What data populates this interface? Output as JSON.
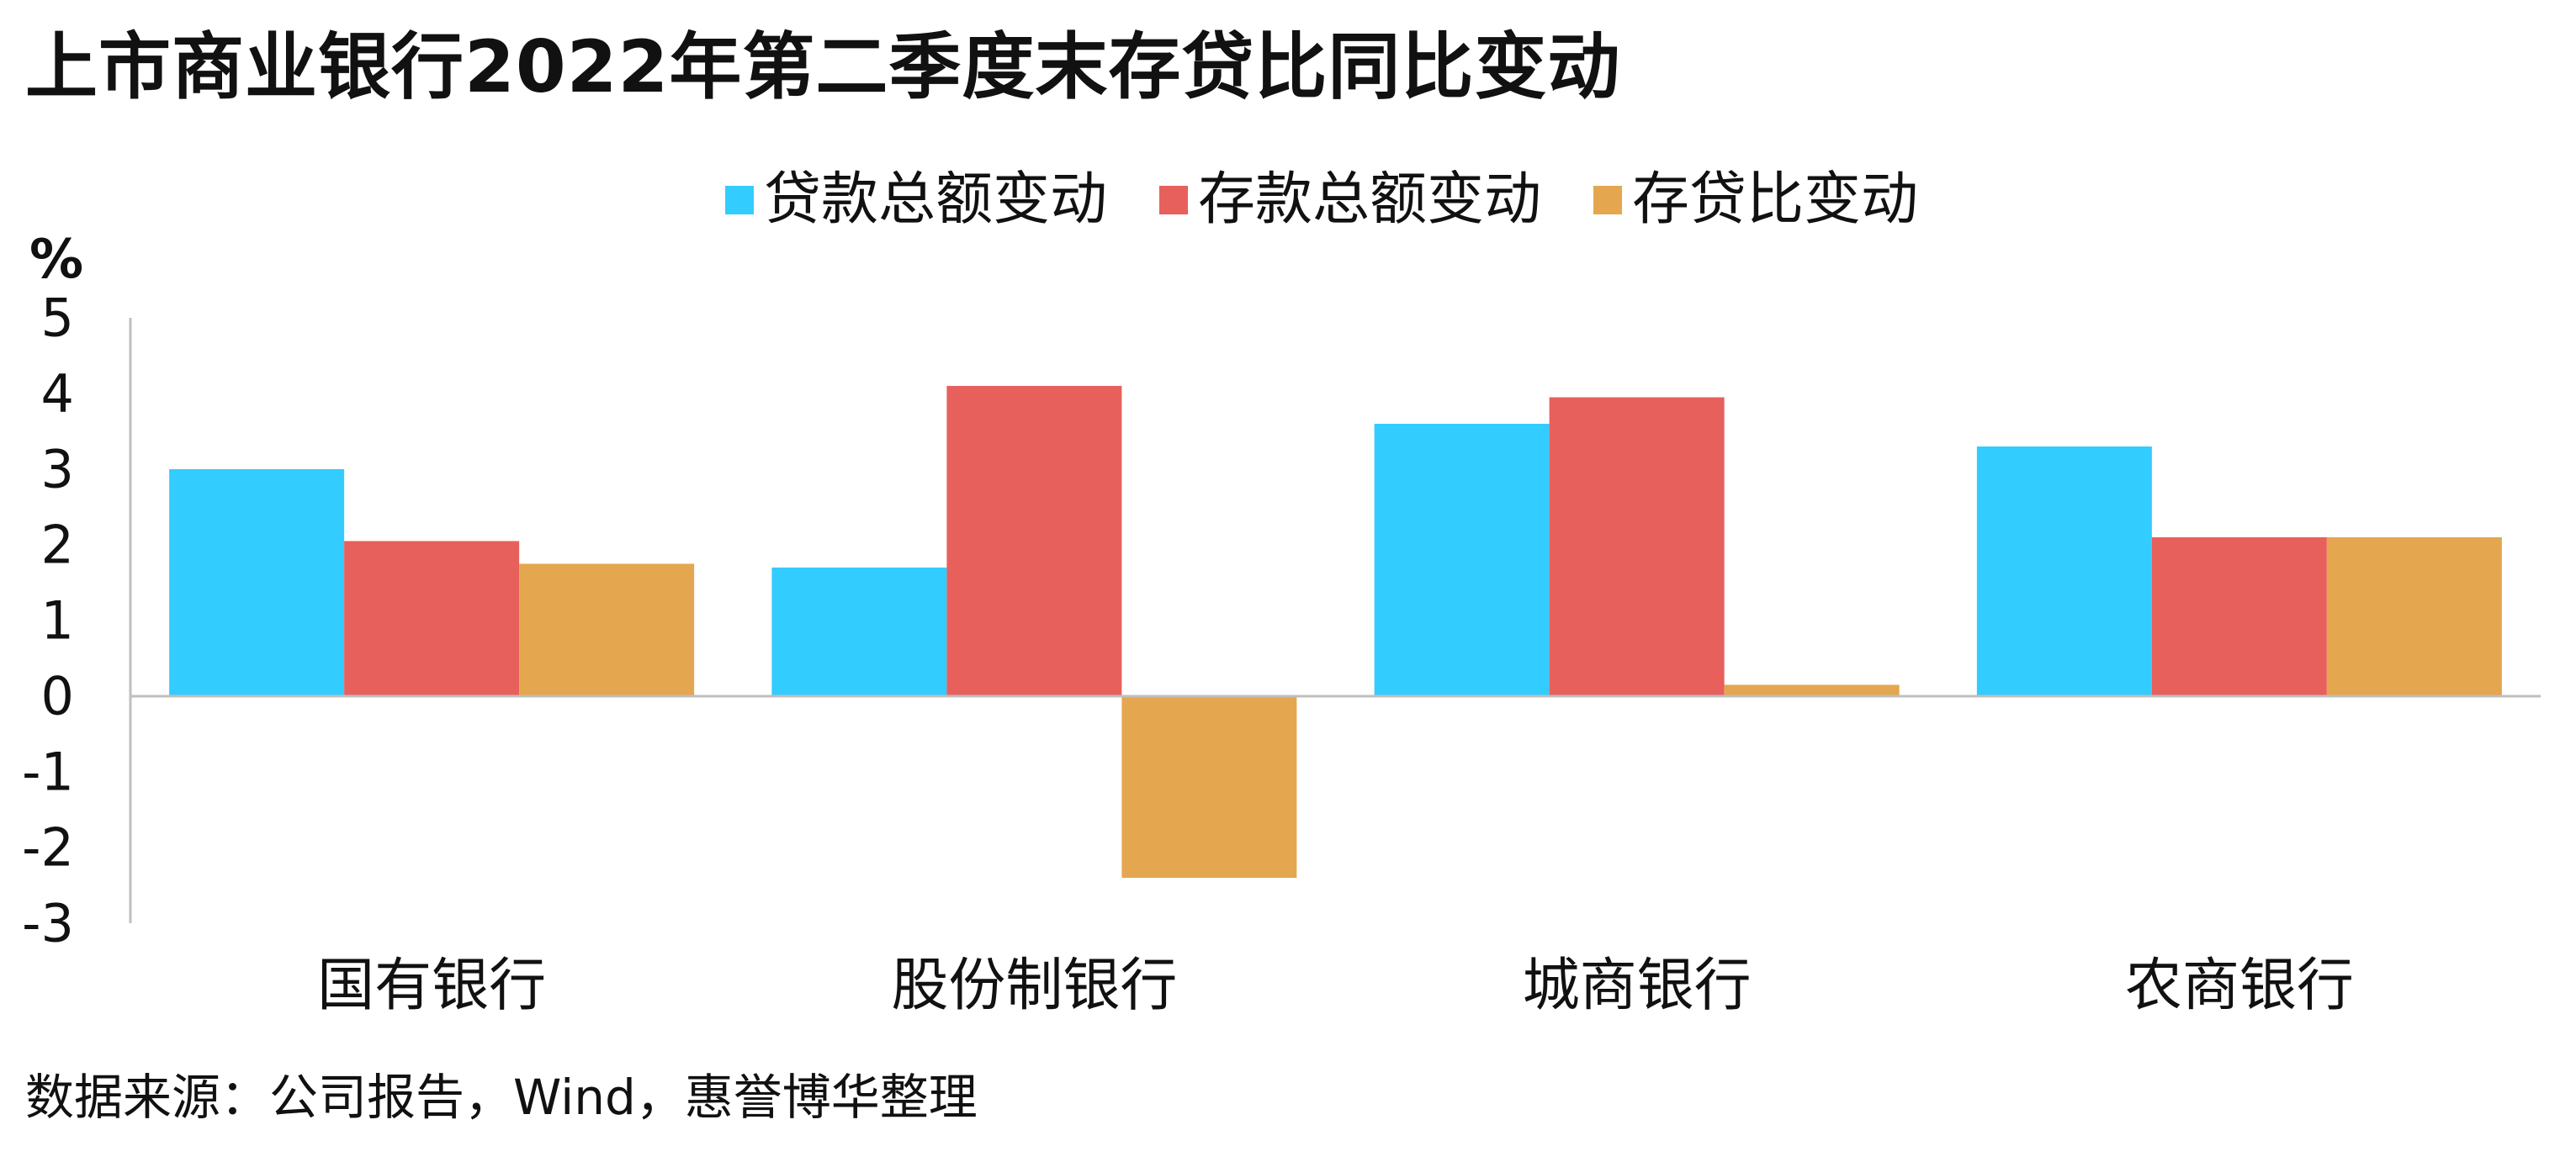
{
  "title": "上市商业银行2022年第二季度末存贷比同比变动",
  "source": "数据来源：公司报告，Wind，惠誉博华整理",
  "chart_data": {
    "type": "bar",
    "title": "上市商业银行2022年第二季度末存贷比同比变动",
    "ylabel": "%",
    "xlabel": "",
    "ylim": [
      -3,
      5
    ],
    "yticks": [
      "5",
      "4",
      "3",
      "2",
      "1",
      "0",
      "-1",
      "-2",
      "-3"
    ],
    "grid": false,
    "legend_position": "top-center",
    "categories": [
      "国有银行",
      "股份制银行",
      "城商银行",
      "农商银行"
    ],
    "series": [
      {
        "name": "贷款总额变动",
        "color": "#33CCFF",
        "values": [
          3.0,
          1.7,
          3.6,
          3.3
        ]
      },
      {
        "name": "存款总额变动",
        "color": "#E8605C",
        "values": [
          2.05,
          4.1,
          3.95,
          2.1
        ]
      },
      {
        "name": "存贷比变动",
        "color": "#E5A650",
        "values": [
          1.75,
          -2.4,
          0.15,
          2.1
        ]
      }
    ]
  }
}
